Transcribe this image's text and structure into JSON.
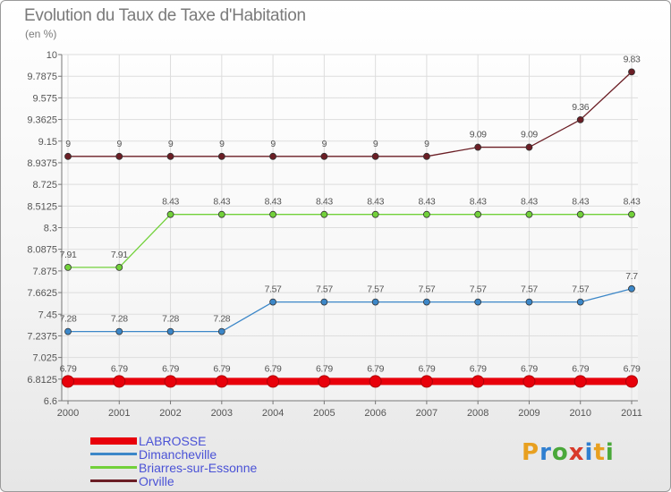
{
  "chart_data": {
    "type": "line",
    "title": "Evolution du Taux de Taxe d'Habitation",
    "subtitle": "(en %)",
    "x": [
      "2000",
      "2001",
      "2002",
      "2003",
      "2004",
      "2005",
      "2006",
      "2007",
      "2008",
      "2009",
      "2010",
      "2011"
    ],
    "ylim": [
      6.6,
      10
    ],
    "yticks": [
      "10",
      "9.7875",
      "9.575",
      "9.3625",
      "9.15",
      "8.9375",
      "8.725",
      "8.5125",
      "8.3",
      "8.0875",
      "7.875",
      "7.6625",
      "7.45",
      "7.2375",
      "7.025",
      "6.8125",
      "6.6"
    ],
    "grid": true,
    "legend_position": "bottom-left",
    "series": [
      {
        "name": "LABROSSE",
        "color": "#e8000b",
        "emphasis": true,
        "values": [
          6.79,
          6.79,
          6.79,
          6.79,
          6.79,
          6.79,
          6.79,
          6.79,
          6.79,
          6.79,
          6.79,
          6.79
        ],
        "labels": [
          "6.79",
          "6.79",
          "6.79",
          "6.79",
          "6.79",
          "6.79",
          "6.79",
          "6.79",
          "6.79",
          "6.79",
          "6.79",
          "6.79"
        ]
      },
      {
        "name": "Dimancheville",
        "color": "#3c87c8",
        "values": [
          7.28,
          7.28,
          7.28,
          7.28,
          7.57,
          7.57,
          7.57,
          7.57,
          7.57,
          7.57,
          7.57,
          7.7
        ],
        "labels": [
          "7.28",
          "7.28",
          "7.28",
          "7.28",
          "7.57",
          "7.57",
          "7.57",
          "7.57",
          "7.57",
          "7.57",
          "7.57",
          "7.7"
        ]
      },
      {
        "name": "Briarres-sur-Essonne",
        "color": "#72d13a",
        "values": [
          7.91,
          7.91,
          8.43,
          8.43,
          8.43,
          8.43,
          8.43,
          8.43,
          8.43,
          8.43,
          8.43,
          8.43
        ],
        "labels": [
          "7.91",
          "7.91",
          "8.43",
          "8.43",
          "8.43",
          "8.43",
          "8.43",
          "8.43",
          "8.43",
          "8.43",
          "8.43",
          "8.43"
        ]
      },
      {
        "name": "Orville",
        "color": "#6b1e25",
        "values": [
          9,
          9,
          9,
          9,
          9,
          9,
          9,
          9,
          9.09,
          9.09,
          9.36,
          9.83
        ],
        "labels": [
          "9",
          "9",
          "9",
          "9",
          "9",
          "9",
          "9",
          "9",
          "9.09",
          "9.09",
          "9.36",
          "9.83"
        ]
      }
    ]
  },
  "logo": {
    "text": "Proxiti",
    "letter_colors": [
      "#e8a020",
      "#2f7fd0",
      "#4aa83a",
      "#d83a2a",
      "#2f7fd0",
      "#e8a020",
      "#4aa83a"
    ]
  }
}
